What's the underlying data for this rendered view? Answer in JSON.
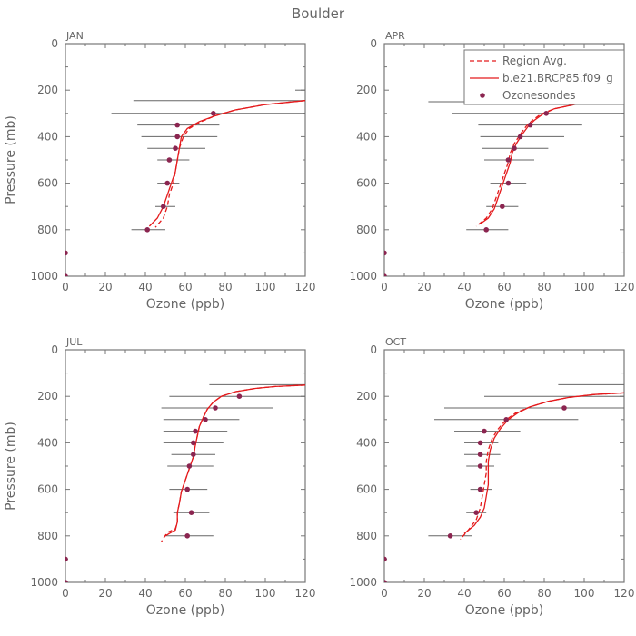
{
  "figure_title": "Boulder",
  "chart_data": {
    "type": "line",
    "title": "Boulder",
    "xlabel": "Ozone (ppb)",
    "ylabel": "Pressure (mb)",
    "xlim": [
      0,
      120
    ],
    "ylim": [
      1000,
      0
    ],
    "xticks": [
      0,
      20,
      40,
      60,
      80,
      100,
      120
    ],
    "yticks": [
      0,
      200,
      400,
      600,
      800,
      1000
    ],
    "grid": false,
    "legend": {
      "placement": "top-right",
      "panel": "APR",
      "entries": [
        {
          "label": "Region Avg.",
          "style": "dashed",
          "color": "#e41a1c"
        },
        {
          "label": "b.e21.BRCP85.f09_g",
          "style": "solid",
          "color": "#e41a1c"
        },
        {
          "label": "Ozonesondes",
          "style": "marker",
          "color": "#8b2550"
        }
      ]
    },
    "panels": [
      {
        "label": "JAN",
        "series": [
          {
            "name": "Region Avg.",
            "style": "dashed",
            "points": [
              [
                120,
                245
              ],
              [
                100,
                262
              ],
              [
                85,
                285
              ],
              [
                75,
                310
              ],
              [
                68,
                335
              ],
              [
                62,
                365
              ],
              [
                59,
                400
              ],
              [
                57,
                450
              ],
              [
                56,
                500
              ],
              [
                55,
                550
              ],
              [
                54,
                600
              ],
              [
                52,
                650
              ],
              [
                51,
                700
              ],
              [
                49,
                750
              ],
              [
                45,
                790
              ]
            ]
          },
          {
            "name": "b.e21.BRCP85.f09_g",
            "style": "solid",
            "points": [
              [
                120,
                245
              ],
              [
                100,
                262
              ],
              [
                85,
                285
              ],
              [
                75,
                310
              ],
              [
                67,
                335
              ],
              [
                61,
                365
              ],
              [
                58,
                400
              ],
              [
                57,
                450
              ],
              [
                56,
                500
              ],
              [
                55,
                550
              ],
              [
                53,
                600
              ],
              [
                51,
                650
              ],
              [
                49,
                700
              ],
              [
                46,
                750
              ],
              [
                42,
                785
              ]
            ]
          },
          {
            "name": "Ozonesondes",
            "style": "marker",
            "points": [
              {
                "x": 74,
                "y": 300,
                "lo": 23,
                "hi": 120
              },
              {
                "x": 56,
                "y": 350,
                "lo": 36,
                "hi": 77
              },
              {
                "x": 56,
                "y": 400,
                "lo": 38,
                "hi": 76
              },
              {
                "x": 55,
                "y": 450,
                "lo": 41,
                "hi": 70
              },
              {
                "x": 52,
                "y": 500,
                "lo": 46,
                "hi": 62
              },
              {
                "x": 51,
                "y": 600,
                "lo": 46,
                "hi": 57
              },
              {
                "x": 49,
                "y": 700,
                "lo": 45,
                "hi": 55
              },
              {
                "x": 41,
                "y": 800,
                "lo": 33,
                "hi": 50
              },
              {
                "x": 0,
                "y": 900
              },
              {
                "x": 0,
                "y": 1000
              }
            ],
            "extra_bars": [
              {
                "y": 245,
                "lo": 34,
                "hi": 120
              },
              {
                "y": 200,
                "lo": 115,
                "hi": 120
              }
            ]
          }
        ]
      },
      {
        "label": "APR",
        "series": [
          {
            "name": "Region Avg.",
            "style": "dashed",
            "points": [
              [
                120,
                235
              ],
              [
                105,
                248
              ],
              [
                95,
                262
              ],
              [
                85,
                280
              ],
              [
                78,
                305
              ],
              [
                74,
                330
              ],
              [
                71,
                355
              ],
              [
                68,
                390
              ],
              [
                65,
                430
              ],
              [
                63,
                470
              ],
              [
                62,
                510
              ],
              [
                60,
                560
              ],
              [
                58,
                610
              ],
              [
                56,
                660
              ],
              [
                54,
                710
              ],
              [
                51,
                750
              ],
              [
                46,
                785
              ]
            ]
          },
          {
            "name": "b.e21.BRCP85.f09_g",
            "style": "solid",
            "points": [
              [
                120,
                235
              ],
              [
                105,
                248
              ],
              [
                95,
                262
              ],
              [
                85,
                280
              ],
              [
                79,
                305
              ],
              [
                75,
                330
              ],
              [
                72,
                355
              ],
              [
                69,
                390
              ],
              [
                66,
                430
              ],
              [
                64,
                470
              ],
              [
                63,
                510
              ],
              [
                61,
                560
              ],
              [
                59,
                610
              ],
              [
                57,
                660
              ],
              [
                55,
                710
              ],
              [
                52,
                750
              ],
              [
                48,
                775
              ]
            ]
          },
          {
            "name": "Ozonesondes",
            "style": "marker",
            "points": [
              {
                "x": 112,
                "y": 250,
                "lo": 22,
                "hi": 120
              },
              {
                "x": 81,
                "y": 300,
                "lo": 34,
                "hi": 120
              },
              {
                "x": 73,
                "y": 350,
                "lo": 47,
                "hi": 99
              },
              {
                "x": 68,
                "y": 400,
                "lo": 48,
                "hi": 90
              },
              {
                "x": 65,
                "y": 450,
                "lo": 49,
                "hi": 82
              },
              {
                "x": 62,
                "y": 500,
                "lo": 50,
                "hi": 75
              },
              {
                "x": 62,
                "y": 600,
                "lo": 53,
                "hi": 71
              },
              {
                "x": 59,
                "y": 700,
                "lo": 51,
                "hi": 67
              },
              {
                "x": 51,
                "y": 800,
                "lo": 41,
                "hi": 62
              },
              {
                "x": 0,
                "y": 900
              },
              {
                "x": 0,
                "y": 1000
              }
            ],
            "extra_bars": []
          }
        ]
      },
      {
        "label": "JUL",
        "series": [
          {
            "name": "Region Avg.",
            "style": "dashed",
            "points": [
              [
                120,
                152
              ],
              [
                105,
                158
              ],
              [
                95,
                166
              ],
              [
                85,
                180
              ],
              [
                78,
                200
              ],
              [
                74,
                225
              ],
              [
                71,
                255
              ],
              [
                69,
                290
              ],
              [
                67,
                330
              ],
              [
                66,
                370
              ],
              [
                65,
                410
              ],
              [
                64,
                460
              ],
              [
                62,
                510
              ],
              [
                60,
                560
              ],
              [
                58,
                610
              ],
              [
                57,
                660
              ],
              [
                56,
                700
              ],
              [
                56,
                740
              ],
              [
                55,
                770
              ],
              [
                51,
                785
              ],
              [
                48,
                825
              ]
            ]
          },
          {
            "name": "b.e21.BRCP85.f09_g",
            "style": "solid",
            "points": [
              [
                120,
                152
              ],
              [
                105,
                158
              ],
              [
                95,
                166
              ],
              [
                85,
                180
              ],
              [
                78,
                200
              ],
              [
                74,
                225
              ],
              [
                71,
                255
              ],
              [
                69,
                290
              ],
              [
                67,
                330
              ],
              [
                66,
                370
              ],
              [
                65,
                410
              ],
              [
                64,
                460
              ],
              [
                62,
                510
              ],
              [
                60,
                560
              ],
              [
                58,
                610
              ],
              [
                57,
                660
              ],
              [
                56,
                700
              ],
              [
                56,
                740
              ],
              [
                55,
                775
              ],
              [
                52,
                790
              ],
              [
                50,
                800
              ]
            ]
          },
          {
            "name": "Ozonesondes",
            "style": "marker",
            "points": [
              {
                "x": 87,
                "y": 200,
                "lo": 52,
                "hi": 120
              },
              {
                "x": 75,
                "y": 250,
                "lo": 48,
                "hi": 104
              },
              {
                "x": 70,
                "y": 300,
                "lo": 49,
                "hi": 87
              },
              {
                "x": 65,
                "y": 350,
                "lo": 49,
                "hi": 81
              },
              {
                "x": 64,
                "y": 400,
                "lo": 49,
                "hi": 79
              },
              {
                "x": 64,
                "y": 450,
                "lo": 53,
                "hi": 75
              },
              {
                "x": 62,
                "y": 500,
                "lo": 51,
                "hi": 74
              },
              {
                "x": 61,
                "y": 600,
                "lo": 52,
                "hi": 71
              },
              {
                "x": 63,
                "y": 700,
                "lo": 54,
                "hi": 72
              },
              {
                "x": 61,
                "y": 800,
                "lo": 50,
                "hi": 74
              },
              {
                "x": 0,
                "y": 900
              },
              {
                "x": 0,
                "y": 1000
              }
            ],
            "extra_bars": [
              {
                "y": 150,
                "lo": 72,
                "hi": 120
              }
            ]
          }
        ]
      },
      {
        "label": "OCT",
        "series": [
          {
            "name": "Region Avg.",
            "style": "dashed",
            "points": [
              [
                120,
                185
              ],
              [
                105,
                192
              ],
              [
                92,
                205
              ],
              [
                82,
                222
              ],
              [
                73,
                245
              ],
              [
                66,
                270
              ],
              [
                61,
                300
              ],
              [
                57,
                340
              ],
              [
                54,
                380
              ],
              [
                52,
                430
              ],
              [
                51,
                480
              ],
              [
                51,
                530
              ],
              [
                50,
                580
              ],
              [
                49,
                630
              ],
              [
                48,
                680
              ],
              [
                46,
                730
              ],
              [
                42,
                775
              ],
              [
                38,
                815
              ]
            ]
          },
          {
            "name": "b.e21.BRCP85.f09_g",
            "style": "solid",
            "points": [
              [
                120,
                185
              ],
              [
                105,
                192
              ],
              [
                92,
                205
              ],
              [
                82,
                222
              ],
              [
                73,
                245
              ],
              [
                67,
                270
              ],
              [
                62,
                300
              ],
              [
                58,
                340
              ],
              [
                55,
                380
              ],
              [
                53,
                430
              ],
              [
                52,
                480
              ],
              [
                52,
                530
              ],
              [
                52,
                580
              ],
              [
                51,
                630
              ],
              [
                50,
                680
              ],
              [
                48,
                720
              ],
              [
                45,
                755
              ],
              [
                40,
                790
              ]
            ]
          },
          {
            "name": "Ozonesondes",
            "style": "marker",
            "points": [
              {
                "x": 90,
                "y": 250,
                "lo": 30,
                "hi": 120
              },
              {
                "x": 61,
                "y": 300,
                "lo": 25,
                "hi": 97
              },
              {
                "x": 50,
                "y": 350,
                "lo": 35,
                "hi": 68
              },
              {
                "x": 48,
                "y": 400,
                "lo": 40,
                "hi": 57
              },
              {
                "x": 48,
                "y": 450,
                "lo": 40,
                "hi": 58
              },
              {
                "x": 48,
                "y": 500,
                "lo": 41,
                "hi": 55
              },
              {
                "x": 48,
                "y": 600,
                "lo": 43,
                "hi": 54
              },
              {
                "x": 46,
                "y": 700,
                "lo": 41,
                "hi": 51
              },
              {
                "x": 33,
                "y": 800,
                "lo": 22,
                "hi": 44
              },
              {
                "x": 0,
                "y": 900
              },
              {
                "x": 0,
                "y": 1000
              }
            ],
            "extra_bars": [
              {
                "y": 200,
                "lo": 50,
                "hi": 120
              },
              {
                "y": 150,
                "lo": 87,
                "hi": 120
              }
            ]
          }
        ]
      }
    ]
  }
}
